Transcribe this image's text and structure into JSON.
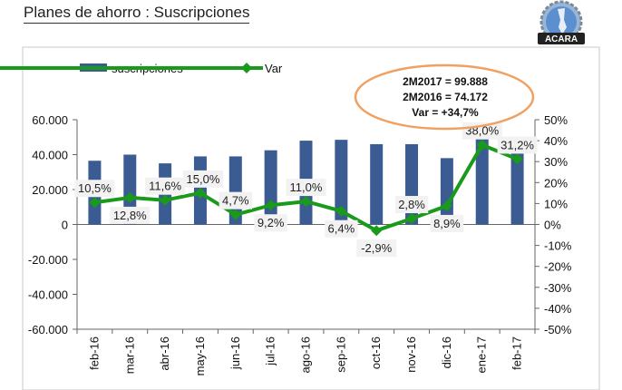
{
  "header": {
    "title": "Planes de ahorro : Suscripciones",
    "logo_text": "ACARA"
  },
  "colors": {
    "bar": "#3b5b93",
    "line": "#1a9a1a",
    "ellipse": "#f0a060",
    "label_bg": "#f2f2f2"
  },
  "annotation": {
    "line1": "2M2017 = 99.888",
    "line2": "2M2016 = 74.172",
    "line3": "Var = +34,7%"
  },
  "chart_data": {
    "type": "bar+line",
    "title": "",
    "categories": [
      "feb-16",
      "mar-16",
      "abr-16",
      "may-16",
      "jun-16",
      "jul-16",
      "ago-16",
      "sep-16",
      "oct-16",
      "nov-16",
      "dic-16",
      "ene-17",
      "feb-17"
    ],
    "series": [
      {
        "name": "suscripciones",
        "type": "bar",
        "axis": "left",
        "values": [
          36500,
          40000,
          35000,
          39000,
          39000,
          42500,
          48000,
          48500,
          46000,
          46000,
          38000,
          53500,
          48000
        ]
      },
      {
        "name": "Var",
        "type": "line",
        "axis": "right",
        "values": [
          10.5,
          12.8,
          11.6,
          15.0,
          4.7,
          9.2,
          11.0,
          6.4,
          -2.9,
          2.8,
          8.9,
          38.0,
          31.2
        ],
        "labels": [
          "10,5%",
          "12,8%",
          "11,6%",
          "15,0%",
          "4,7%",
          "9,2%",
          "11,0%",
          "6,4%",
          "-2,9%",
          "2,8%",
          "8,9%",
          "38,0%",
          "31,2%"
        ]
      }
    ],
    "ylim_left": [
      -60000,
      60000
    ],
    "yticks_left": [
      "60.000",
      "40.000",
      "20.000",
      "0",
      "-20.000",
      "-40.000",
      "-60.000"
    ],
    "ylim_right": [
      -50,
      50
    ],
    "yticks_right": [
      "50%",
      "40%",
      "30%",
      "20%",
      "10%",
      "0%",
      "-10%",
      "-20%",
      "-30%",
      "-40%",
      "-50%"
    ],
    "legend": "top-left"
  }
}
